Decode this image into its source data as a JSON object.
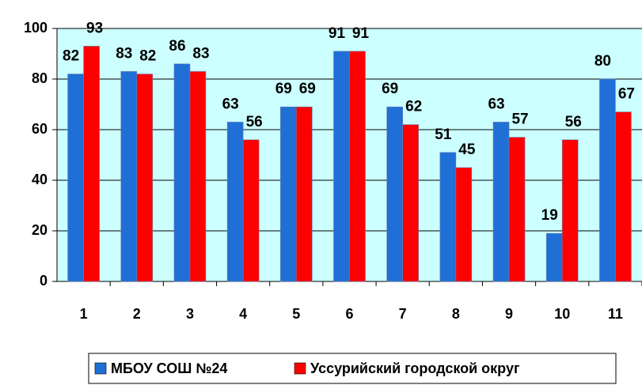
{
  "chart_data": {
    "type": "bar",
    "categories": [
      "1",
      "2",
      "3",
      "4",
      "5",
      "6",
      "7",
      "8",
      "9",
      "10",
      "11"
    ],
    "series": [
      {
        "name": "МБОУ СОШ №24",
        "color": "#1f6fd6",
        "values": [
          82,
          83,
          86,
          63,
          69,
          91,
          69,
          51,
          63,
          19,
          80
        ]
      },
      {
        "name": "Уссурийский городской округ",
        "color": "#ff0000",
        "values": [
          93,
          82,
          83,
          56,
          69,
          91,
          62,
          45,
          57,
          56,
          67
        ]
      }
    ],
    "ylim": [
      0,
      100
    ],
    "yticks": [
      0,
      20,
      40,
      60,
      80,
      100
    ],
    "grid": true,
    "legend": "bottom"
  }
}
